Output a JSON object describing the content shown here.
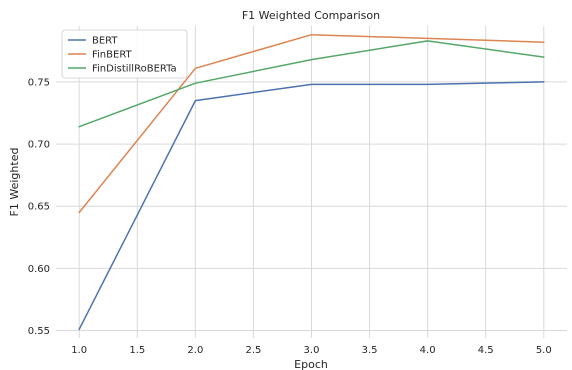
{
  "chart_data": {
    "type": "line",
    "title": "F1 Weighted Comparison",
    "xlabel": "Epoch",
    "ylabel": "F1 Weighted",
    "xlim": [
      0.8,
      5.2
    ],
    "ylim": [
      0.544,
      0.795
    ],
    "xticks": [
      "1.0",
      "1.5",
      "2.0",
      "2.5",
      "3.0",
      "3.5",
      "4.0",
      "4.5",
      "5.0"
    ],
    "yticks": [
      "0.55",
      "0.60",
      "0.65",
      "0.70",
      "0.75"
    ],
    "grid": true,
    "legend_position": "top-left",
    "x": [
      1,
      2,
      3,
      4,
      5
    ],
    "series": [
      {
        "name": "BERT",
        "color": "#4c72b0",
        "values": [
          0.551,
          0.735,
          0.748,
          0.748,
          0.75
        ]
      },
      {
        "name": "FinBERT",
        "color": "#dd8452",
        "values": [
          0.645,
          0.761,
          0.788,
          0.785,
          0.782
        ]
      },
      {
        "name": "FinDistillRoBERTa",
        "color": "#55a868",
        "values": [
          0.714,
          0.749,
          0.768,
          0.783,
          0.77
        ]
      }
    ]
  }
}
